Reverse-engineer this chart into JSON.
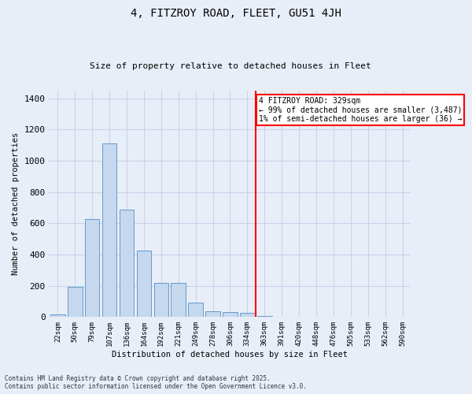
{
  "title1": "4, FITZROY ROAD, FLEET, GU51 4JH",
  "title2": "Size of property relative to detached houses in Fleet",
  "xlabel": "Distribution of detached houses by size in Fleet",
  "ylabel": "Number of detached properties",
  "categories": [
    "22sqm",
    "50sqm",
    "79sqm",
    "107sqm",
    "136sqm",
    "164sqm",
    "192sqm",
    "221sqm",
    "249sqm",
    "278sqm",
    "306sqm",
    "334sqm",
    "363sqm",
    "391sqm",
    "420sqm",
    "448sqm",
    "476sqm",
    "505sqm",
    "533sqm",
    "562sqm",
    "590sqm"
  ],
  "values": [
    15,
    195,
    625,
    1110,
    685,
    425,
    220,
    220,
    90,
    35,
    30,
    27,
    8,
    3,
    1,
    0,
    0,
    0,
    0,
    0,
    0
  ],
  "bar_color": "#c5d8ee",
  "bar_edge_color": "#6699cc",
  "grid_color": "#c8d4e8",
  "background_color": "#e8eef8",
  "vline_color": "red",
  "annotation_text": "4 FITZROY ROAD: 329sqm\n← 99% of detached houses are smaller (3,487)\n1% of semi-detached houses are larger (36) →",
  "annotation_box_color": "white",
  "annotation_box_edge": "red",
  "ylim": [
    0,
    1450
  ],
  "yticks": [
    0,
    200,
    400,
    600,
    800,
    1000,
    1200,
    1400
  ],
  "footnote1": "Contains HM Land Registry data © Crown copyright and database right 2025.",
  "footnote2": "Contains public sector information licensed under the Open Government Licence v3.0."
}
